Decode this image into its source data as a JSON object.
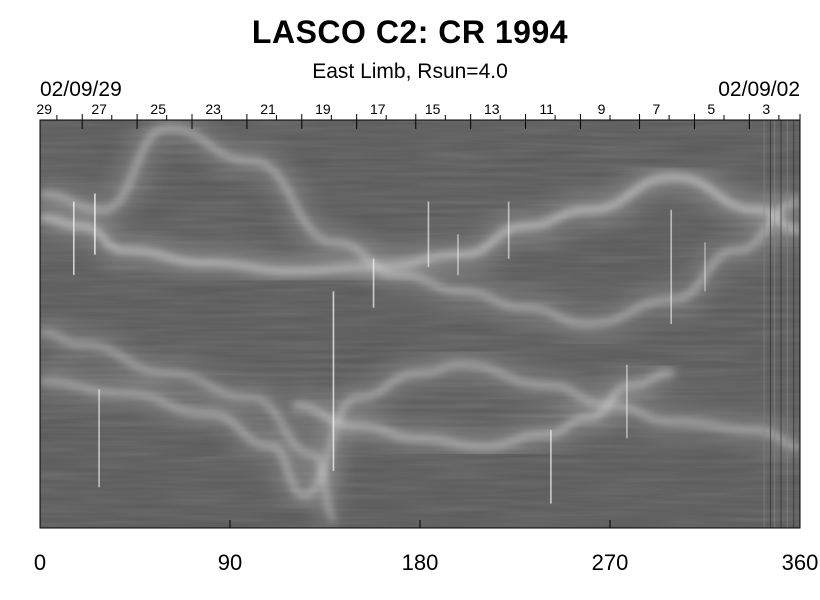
{
  "title": "LASCO C2: CR 1994",
  "subtitle": "East Limb, Rsun=4.0",
  "top_axis": {
    "left_date": "02/09/29",
    "right_date": "02/09/02",
    "day_ticks": [
      {
        "label": "29",
        "x": 1
      },
      {
        "label": "27",
        "x": 14
      },
      {
        "label": "25",
        "x": 28
      },
      {
        "label": "23",
        "x": 41
      },
      {
        "label": "21",
        "x": 54
      },
      {
        "label": "19",
        "x": 67
      },
      {
        "label": "17",
        "x": 80
      },
      {
        "label": "15",
        "x": 93
      },
      {
        "label": "13",
        "x": 107
      },
      {
        "label": "11",
        "x": 120
      },
      {
        "label": "9",
        "x": 133
      },
      {
        "label": "7",
        "x": 146
      },
      {
        "label": "5",
        "x": 159
      },
      {
        "label": "3",
        "x": 172
      }
    ],
    "major_ticks": [
      10,
      23,
      36,
      49,
      62,
      75,
      89,
      102,
      115,
      128,
      142,
      155,
      168,
      180
    ],
    "minor_ticks": [
      4,
      17,
      30,
      43,
      56,
      69,
      82,
      96,
      109,
      122,
      135,
      149,
      162,
      175
    ]
  },
  "chart_data": {
    "type": "heatmap",
    "title": "LASCO C2: CR 1994",
    "subtitle": "East Limb, Rsun=4.0",
    "x_axis": {
      "ticks": [
        0,
        90,
        180,
        270,
        360
      ],
      "range": [
        0,
        360
      ]
    },
    "colormap": "grayscale",
    "background": "#5a5a5a",
    "features": [
      {
        "kind": "bright-band",
        "points": [
          [
            0,
            0.24
          ],
          [
            20,
            0.26
          ],
          [
            40,
            0.32
          ],
          [
            80,
            0.35
          ],
          [
            120,
            0.37
          ],
          [
            160,
            0.36
          ],
          [
            200,
            0.33
          ],
          [
            230,
            0.26
          ],
          [
            260,
            0.22
          ],
          [
            300,
            0.14
          ],
          [
            340,
            0.22
          ],
          [
            360,
            0.27
          ]
        ],
        "intensity": 0.6
      },
      {
        "kind": "bright-band",
        "points": [
          [
            0,
            0.18
          ],
          [
            30,
            0.22
          ],
          [
            60,
            0.02
          ],
          [
            100,
            0.1
          ],
          [
            140,
            0.3
          ],
          [
            170,
            0.38
          ],
          [
            200,
            0.42
          ],
          [
            230,
            0.46
          ],
          [
            260,
            0.5
          ],
          [
            300,
            0.44
          ],
          [
            330,
            0.32
          ],
          [
            360,
            0.2
          ]
        ],
        "intensity": 0.45
      },
      {
        "kind": "bright-band",
        "points": [
          [
            0,
            0.64
          ],
          [
            40,
            0.67
          ],
          [
            80,
            0.72
          ],
          [
            110,
            0.8
          ],
          [
            125,
            0.92
          ],
          [
            150,
            0.68
          ],
          [
            180,
            0.62
          ],
          [
            200,
            0.6
          ],
          [
            240,
            0.65
          ],
          [
            270,
            0.7
          ],
          [
            300,
            0.74
          ],
          [
            340,
            0.76
          ],
          [
            360,
            0.8
          ]
        ],
        "intensity": 0.45
      },
      {
        "kind": "bright-band",
        "points": [
          [
            120,
            0.7
          ],
          [
            150,
            0.75
          ],
          [
            180,
            0.78
          ],
          [
            210,
            0.8
          ],
          [
            240,
            0.77
          ],
          [
            260,
            0.73
          ],
          [
            280,
            0.65
          ],
          [
            300,
            0.62
          ]
        ],
        "intensity": 0.5
      },
      {
        "kind": "bright-band",
        "points": [
          [
            0,
            0.52
          ],
          [
            20,
            0.55
          ],
          [
            60,
            0.62
          ],
          [
            100,
            0.68
          ],
          [
            130,
            0.82
          ],
          [
            140,
            0.98
          ]
        ],
        "intensity": 0.4
      }
    ],
    "streaks": [
      {
        "x": 16,
        "y0": 0.2,
        "y1": 0.38,
        "intensity": 0.75
      },
      {
        "x": 26,
        "y0": 0.18,
        "y1": 0.33,
        "intensity": 0.8
      },
      {
        "x": 28,
        "y0": 0.66,
        "y1": 0.9,
        "intensity": 0.65
      },
      {
        "x": 139,
        "y0": 0.42,
        "y1": 0.86,
        "intensity": 0.75
      },
      {
        "x": 158,
        "y0": 0.34,
        "y1": 0.46,
        "intensity": 0.7
      },
      {
        "x": 184,
        "y0": 0.2,
        "y1": 0.36,
        "intensity": 0.65
      },
      {
        "x": 198,
        "y0": 0.28,
        "y1": 0.38,
        "intensity": 0.55
      },
      {
        "x": 222,
        "y0": 0.2,
        "y1": 0.34,
        "intensity": 0.6
      },
      {
        "x": 242,
        "y0": 0.76,
        "y1": 0.94,
        "intensity": 0.7
      },
      {
        "x": 278,
        "y0": 0.6,
        "y1": 0.78,
        "intensity": 0.55
      },
      {
        "x": 299,
        "y0": 0.22,
        "y1": 0.5,
        "intensity": 0.6
      },
      {
        "x": 315,
        "y0": 0.3,
        "y1": 0.42,
        "intensity": 0.45
      }
    ]
  }
}
